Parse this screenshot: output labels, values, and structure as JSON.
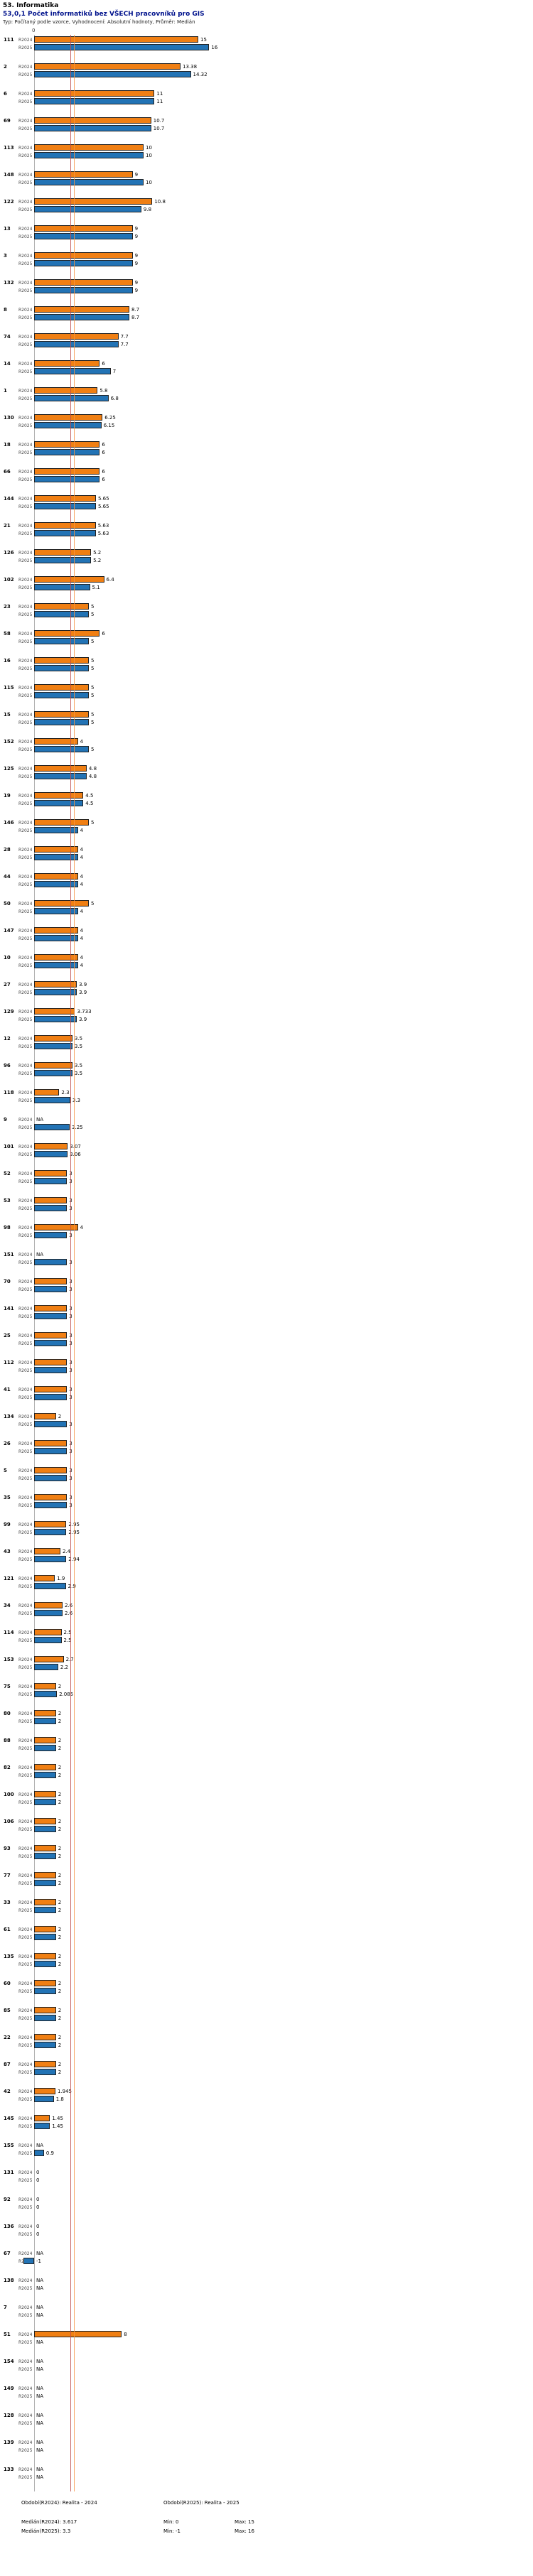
{
  "header": {
    "title": "53. Informatika",
    "subtitle": "53,0,1 Počet informatiků bez VŠECH pracovníků pro GIS",
    "meta": "Typ: Počítaný podle vzorce, Vyhodnocení: Absolutní hodnoty, Průměr: Medián"
  },
  "chart_data": {
    "type": "bar",
    "orientation": "horizontal",
    "sorted_by": "R2025 descending, NA last",
    "x_axis": {
      "origin_label": "0",
      "xlim": [
        -1,
        17
      ],
      "gridlines": false
    },
    "series_labels": [
      "R2024",
      "R2025"
    ],
    "colors": {
      "R2024": "#f07f13",
      "R2025": "#2273b5",
      "median_R2024_line": "#f79646",
      "median_R2025_line": "#c0504d"
    },
    "medians": {
      "R2024": 3.617,
      "R2025": 3.3
    },
    "groups": [
      [
        "111",
        "15",
        "16"
      ],
      [
        "2",
        "13.38",
        "14.32"
      ],
      [
        "6",
        "11",
        "11"
      ],
      [
        "69",
        "10.7",
        "10.7"
      ],
      [
        "113",
        "10",
        "10"
      ],
      [
        "148",
        "9",
        "10"
      ],
      [
        "122",
        "10.8",
        "9.8"
      ],
      [
        "13",
        "9",
        "9"
      ],
      [
        "3",
        "9",
        "9"
      ],
      [
        "132",
        "9",
        "9"
      ],
      [
        "8",
        "8.7",
        "8.7"
      ],
      [
        "74",
        "7.7",
        "7.7"
      ],
      [
        "14",
        "6",
        "7"
      ],
      [
        "1",
        "5.8",
        "6.8"
      ],
      [
        "130",
        "6.25",
        "6.15"
      ],
      [
        "18",
        "6",
        "6"
      ],
      [
        "66",
        "6",
        "6"
      ],
      [
        "144",
        "5.65",
        "5.65"
      ],
      [
        "21",
        "5.63",
        "5.63"
      ],
      [
        "126",
        "5.2",
        "5.2"
      ],
      [
        "102",
        "6.4",
        "5.1"
      ],
      [
        "23",
        "5",
        "5"
      ],
      [
        "58",
        "6",
        "5"
      ],
      [
        "16",
        "5",
        "5"
      ],
      [
        "115",
        "5",
        "5"
      ],
      [
        "15",
        "5",
        "5"
      ],
      [
        "152",
        "4",
        "5"
      ],
      [
        "125",
        "4.8",
        "4.8"
      ],
      [
        "19",
        "4.5",
        "4.5"
      ],
      [
        "146",
        "5",
        "4"
      ],
      [
        "28",
        "4",
        "4"
      ],
      [
        "44",
        "4",
        "4"
      ],
      [
        "50",
        "5",
        "4"
      ],
      [
        "147",
        "4",
        "4"
      ],
      [
        "10",
        "4",
        "4"
      ],
      [
        "27",
        "3.9",
        "3.9"
      ],
      [
        "129",
        "3.733",
        "3.9"
      ],
      [
        "12",
        "3.5",
        "3.5"
      ],
      [
        "96",
        "3.5",
        "3.5"
      ],
      [
        "118",
        "2.3",
        "3.3"
      ],
      [
        "9",
        "NA",
        "3.25"
      ],
      [
        "101",
        "3.07",
        "3.06"
      ],
      [
        "52",
        "3",
        "3"
      ],
      [
        "53",
        "3",
        "3"
      ],
      [
        "98",
        "4",
        "3"
      ],
      [
        "151",
        "NA",
        "3"
      ],
      [
        "70",
        "3",
        "3"
      ],
      [
        "141",
        "3",
        "3"
      ],
      [
        "25",
        "3",
        "3"
      ],
      [
        "112",
        "3",
        "3"
      ],
      [
        "41",
        "3",
        "3"
      ],
      [
        "134",
        "2",
        "3"
      ],
      [
        "26",
        "3",
        "3"
      ],
      [
        "5",
        "3",
        "3"
      ],
      [
        "35",
        "3",
        "3"
      ],
      [
        "99",
        "2.95",
        "2.95"
      ],
      [
        "43",
        "2.4",
        "2.94"
      ],
      [
        "121",
        "1.9",
        "2.9"
      ],
      [
        "34",
        "2.6",
        "2.6"
      ],
      [
        "114",
        "2.5",
        "2.5"
      ],
      [
        "153",
        "2.7",
        "2.2"
      ],
      [
        "75",
        "2",
        "2.085"
      ],
      [
        "80",
        "2",
        "2"
      ],
      [
        "88",
        "2",
        "2"
      ],
      [
        "82",
        "2",
        "2"
      ],
      [
        "100",
        "2",
        "2"
      ],
      [
        "106",
        "2",
        "2"
      ],
      [
        "93",
        "2",
        "2"
      ],
      [
        "77",
        "2",
        "2"
      ],
      [
        "33",
        "2",
        "2"
      ],
      [
        "61",
        "2",
        "2"
      ],
      [
        "135",
        "2",
        "2"
      ],
      [
        "60",
        "2",
        "2"
      ],
      [
        "85",
        "2",
        "2"
      ],
      [
        "22",
        "2",
        "2"
      ],
      [
        "87",
        "2",
        "2"
      ],
      [
        "42",
        "1.945",
        "1.8"
      ],
      [
        "145",
        "1.45",
        "1.45"
      ],
      [
        "155",
        "NA",
        "0.9"
      ],
      [
        "131",
        "0",
        "0"
      ],
      [
        "92",
        "0",
        "0"
      ],
      [
        "136",
        "0",
        "0"
      ],
      [
        "67",
        "NA",
        "-1"
      ],
      [
        "138",
        "NA",
        "NA"
      ],
      [
        "7",
        "NA",
        "NA"
      ],
      [
        "51",
        "8",
        "NA"
      ],
      [
        "154",
        "NA",
        "NA"
      ],
      [
        "149",
        "NA",
        "NA"
      ],
      [
        "128",
        "NA",
        "NA"
      ],
      [
        "139",
        "NA",
        "NA"
      ],
      [
        "133",
        "NA",
        "NA"
      ]
    ]
  },
  "footer": {
    "obdobi_r2024": "Období(R2024): Realita - 2024",
    "obdobi_r2025": "Období(R2025): Realita - 2025",
    "median_r2024": "Medián(R2024): 3.617",
    "median_r2025": "Medián(R2025): 3.3",
    "min_r2024": "Min: 0",
    "max_r2024": "Max: 15",
    "min_r2025": "Min: -1",
    "max_r2025": "Max: 16"
  }
}
